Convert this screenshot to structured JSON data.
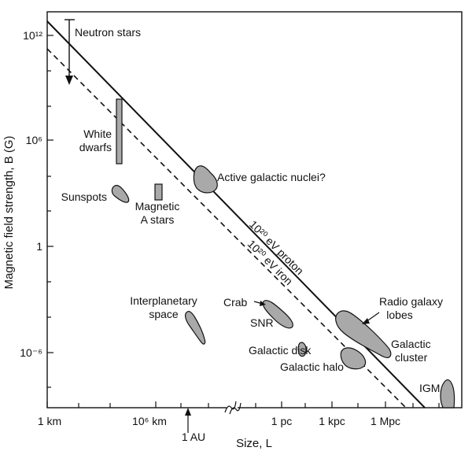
{
  "chart_data": {
    "type": "scatter",
    "xlabel": "Size, L",
    "ylabel": "Magnetic field strength, B (G)",
    "x_ticks": [
      {
        "label": "1 km",
        "log10_cm": 5
      },
      {
        "label": "10^6 km",
        "log10_cm": 11
      },
      {
        "label": "1 pc",
        "log10_cm": 18.49
      },
      {
        "label": "1 kpc",
        "log10_cm": 21.49
      },
      {
        "label": "1 Mpc",
        "log10_cm": 24.49
      }
    ],
    "x_annotation": {
      "label": "1 AU",
      "log10_cm": 13.17
    },
    "x_axis_break_after": "10^6 km",
    "y_ticks": [
      {
        "label": "10^12",
        "log10_G": 12
      },
      {
        "label": "10^6",
        "log10_G": 6
      },
      {
        "label": "1",
        "log10_G": 0
      },
      {
        "label": "10^-6",
        "log10_G": -6
      }
    ],
    "lines": [
      {
        "name": "10^20 eV proton",
        "style": "solid"
      },
      {
        "name": "10^20 eV iron",
        "style": "dashed"
      }
    ],
    "objects": [
      {
        "name": "Neutron stars",
        "log_B_range": [
          8.9,
          13.2
        ]
      },
      {
        "name": "White dwarfs",
        "log_B_range": [
          4.6,
          8.2
        ]
      },
      {
        "name": "Sunspots",
        "log_B": 3.0
      },
      {
        "name": "Magnetic A stars",
        "log_B": 2.7
      },
      {
        "name": "Active galactic nuclei?",
        "log_B": 3.8
      },
      {
        "name": "Interplanetary space",
        "log_B": -4.8
      },
      {
        "name": "Crab",
        "log_B": -3.4
      },
      {
        "name": "SNR",
        "log_B": -4.0
      },
      {
        "name": "Galactic disk",
        "log_B": -5.7
      },
      {
        "name": "Galactic halo",
        "log_B": -6.4
      },
      {
        "name": "Radio galaxy lobes",
        "log_B": -4.7
      },
      {
        "name": "Galactic cluster",
        "log_B": -5.6
      },
      {
        "name": "IGM",
        "log_B": -8.3
      }
    ],
    "grid": false,
    "legend": "none"
  }
}
